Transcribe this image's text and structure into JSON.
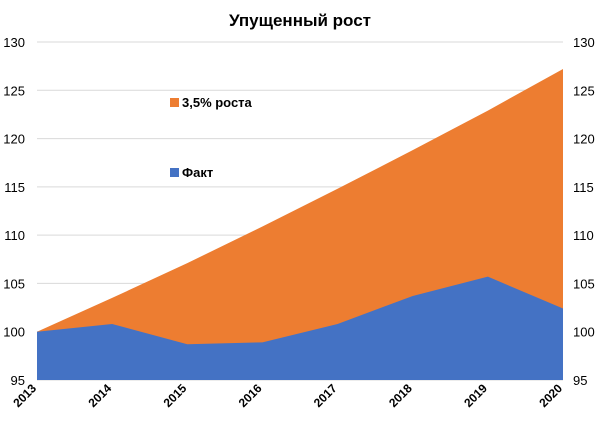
{
  "chart_data": {
    "type": "area",
    "title": "Упущенный рост",
    "x": [
      "2013",
      "2014",
      "2015",
      "2016",
      "2017",
      "2018",
      "2019",
      "2020"
    ],
    "series": [
      {
        "name": "3,5% роста",
        "values": [
          100,
          103.5,
          107.1,
          110.9,
          114.8,
          118.8,
          122.9,
          127.2
        ],
        "color": "#ED7D31"
      },
      {
        "name": "Факт",
        "values": [
          100,
          100.8,
          98.7,
          98.9,
          100.8,
          103.7,
          105.7,
          102.4
        ],
        "color": "#4472C4"
      }
    ],
    "yticks": [
      "95",
      "100",
      "105",
      "110",
      "115",
      "120",
      "125",
      "130"
    ],
    "ylim": [
      95,
      130
    ],
    "secondary_axis": true,
    "grid": true,
    "legend": "inside-left"
  }
}
